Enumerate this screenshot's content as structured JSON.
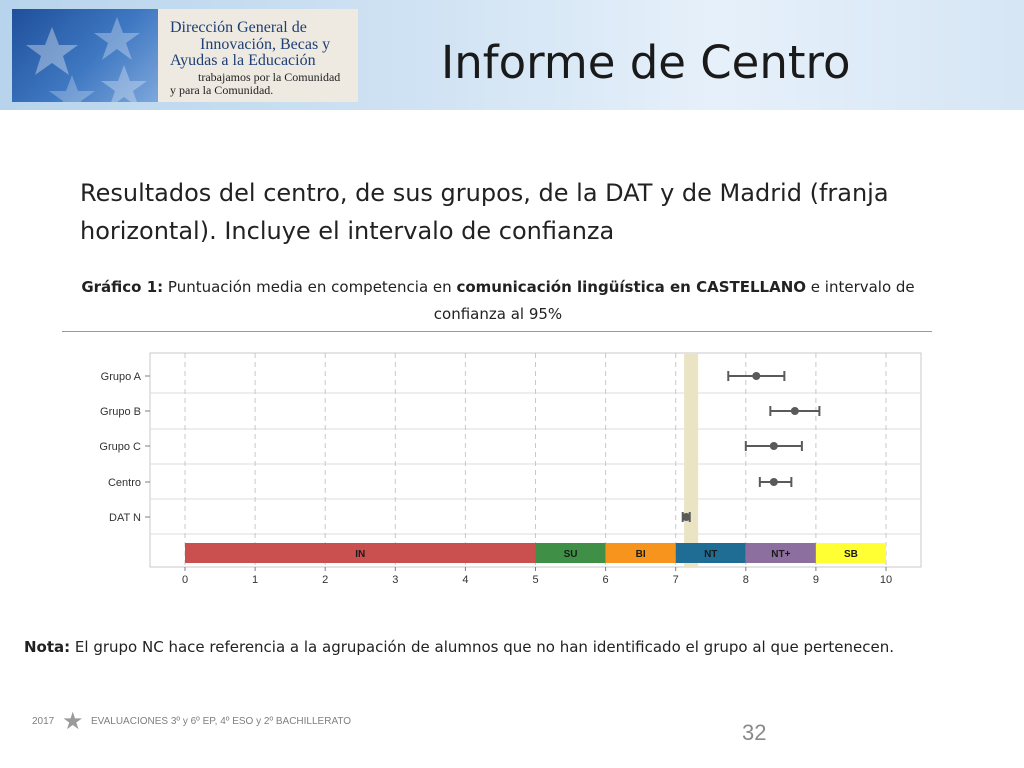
{
  "header": {
    "logo_lines": [
      "Dirección General de",
      "Innovación, Becas y",
      "Ayudas a la Educación",
      "trabajamos por la Comunidad",
      "y para la Comunidad."
    ],
    "title": "Informe de Centro"
  },
  "subtitle": "Resultados del centro, de sus grupos, de la DAT y de Madrid (franja horizontal). Incluye el intervalo de confianza",
  "chart_title": {
    "p1": "Gráfico 1:",
    "p2": " Puntuación media en competencia en ",
    "p3": "comunicación lingüística en CASTELLANO",
    "p4": " e intervalo de confianza al 95%"
  },
  "chart_data": {
    "type": "scatter",
    "title": "Gráfico 1: Puntuación media en competencia en comunicación lingüística en CASTELLANO e intervalo de confianza al 95%",
    "categories": [
      "Grupo A",
      "Grupo B",
      "Grupo C",
      "Centro",
      "DAT N"
    ],
    "points": [
      {
        "label": "Grupo A",
        "mean": 8.15,
        "low": 7.75,
        "high": 8.55
      },
      {
        "label": "Grupo B",
        "mean": 8.7,
        "low": 8.35,
        "high": 9.05
      },
      {
        "label": "Grupo C",
        "mean": 8.4,
        "low": 8.0,
        "high": 8.8
      },
      {
        "label": "Centro",
        "mean": 8.4,
        "low": 8.2,
        "high": 8.65
      },
      {
        "label": "DAT N",
        "mean": 7.15,
        "low": 7.1,
        "high": 7.2
      }
    ],
    "madrid_band": [
      7.12,
      7.32
    ],
    "xlim": [
      0,
      10
    ],
    "xticks": [
      0,
      1,
      2,
      3,
      4,
      5,
      6,
      7,
      8,
      9,
      10
    ],
    "grid": true,
    "levels": [
      {
        "label": "IN",
        "from": 0,
        "to": 5,
        "color": "#c9504f"
      },
      {
        "label": "SU",
        "from": 5,
        "to": 6,
        "color": "#3f9046"
      },
      {
        "label": "BI",
        "from": 6,
        "to": 7,
        "color": "#f7941d"
      },
      {
        "label": "NT",
        "from": 7,
        "to": 8,
        "color": "#1f6d94"
      },
      {
        "label": "NT+",
        "from": 8,
        "to": 9,
        "color": "#8c6f9e"
      },
      {
        "label": "SB",
        "from": 9,
        "to": 10,
        "color": "#ffff33"
      }
    ],
    "colors": {
      "marker": "#5a5a5a",
      "band": "#eae3c4",
      "grid": "#c8c8c8",
      "axis": "#7f7f7f"
    }
  },
  "note": {
    "bold": "Nota:",
    "text": " El grupo NC hace referencia a la agrupación de alumnos que no han identificado el grupo al que pertenecen."
  },
  "footer": {
    "year": "2017",
    "text": "EVALUACIONES  3º y 6º EP, 4º ESO y 2º BACHILLERATO",
    "star": "★",
    "page": "32"
  }
}
